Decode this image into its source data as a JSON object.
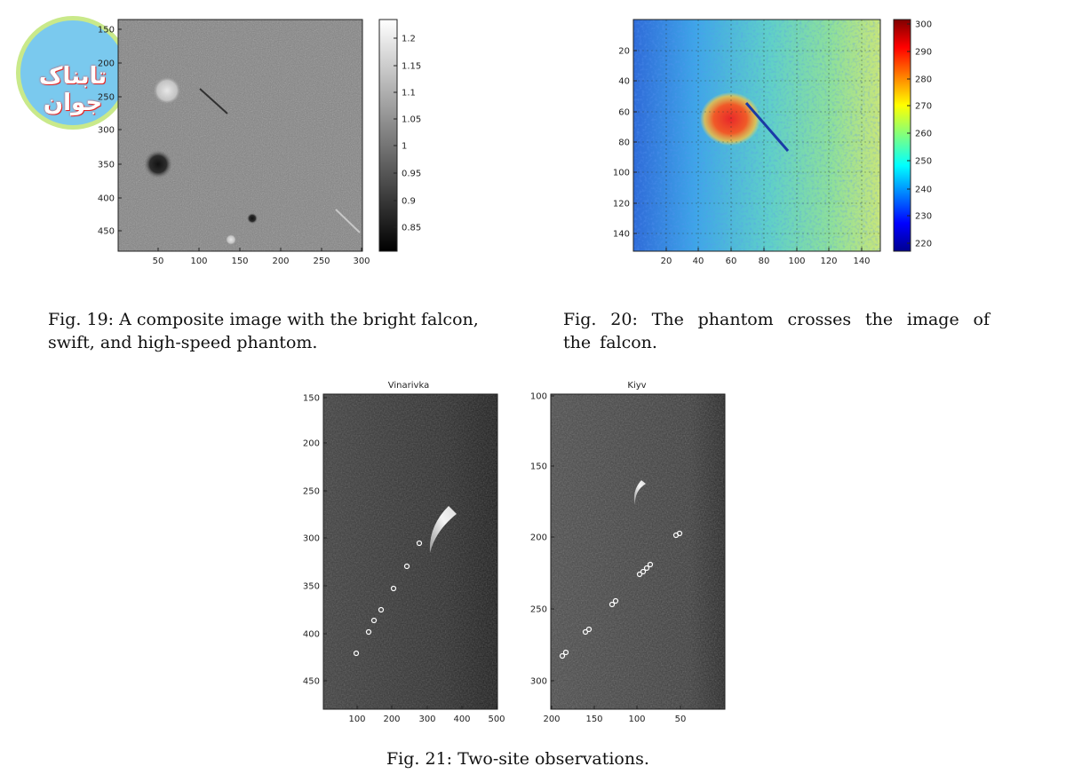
{
  "watermark": {
    "text": "تابناک جوان"
  },
  "fig19": {
    "caption": "Fig. 19: A composite image with the bright falcon, swift, and high-speed phantom.",
    "y_ticks": [
      "150",
      "200",
      "250",
      "300",
      "350",
      "400",
      "450"
    ],
    "x_ticks": [
      "50",
      "100",
      "150",
      "200",
      "250",
      "300"
    ],
    "colorbar_ticks": [
      "1.2",
      "1.15",
      "1.1",
      "1.05",
      "1",
      "0.95",
      "0.9",
      "0.85"
    ]
  },
  "fig20": {
    "caption": "Fig. 20: The phantom crosses the image of the falcon.",
    "y_ticks": [
      "20",
      "40",
      "60",
      "80",
      "100",
      "120",
      "140"
    ],
    "x_ticks": [
      "20",
      "40",
      "60",
      "80",
      "100",
      "120",
      "140"
    ],
    "colorbar_ticks": [
      "300",
      "290",
      "280",
      "270",
      "260",
      "250",
      "240",
      "230",
      "220"
    ]
  },
  "fig21": {
    "caption": "Fig. 21: Two-site observations.",
    "left": {
      "title": "Vinarivka",
      "y_ticks": [
        "150",
        "200",
        "250",
        "300",
        "350",
        "400",
        "450"
      ],
      "x_ticks": [
        "100",
        "200",
        "300",
        "400",
        "500"
      ]
    },
    "right": {
      "title": "Kiyv",
      "y_ticks": [
        "100",
        "150",
        "200",
        "250",
        "300"
      ],
      "x_ticks": [
        "200",
        "150",
        "100",
        "50"
      ]
    }
  }
}
